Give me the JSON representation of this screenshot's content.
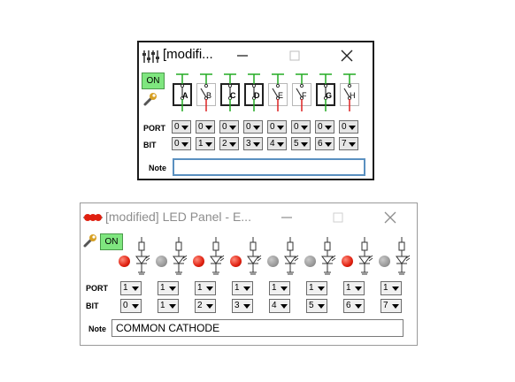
{
  "switch_window": {
    "title": "[modifi...",
    "on_label": "ON",
    "switches": [
      {
        "label": "A",
        "state": "closed"
      },
      {
        "label": "B",
        "state": "open"
      },
      {
        "label": "C",
        "state": "closed"
      },
      {
        "label": "D",
        "state": "closed"
      },
      {
        "label": "E",
        "state": "open"
      },
      {
        "label": "F",
        "state": "open"
      },
      {
        "label": "G",
        "state": "closed"
      },
      {
        "label": "H",
        "state": "open"
      }
    ],
    "port_label": "PORT",
    "bit_label": "BIT",
    "port_values": [
      "0",
      "0",
      "0",
      "0",
      "0",
      "0",
      "0",
      "0"
    ],
    "bit_values": [
      "0",
      "1",
      "2",
      "3",
      "4",
      "5",
      "6",
      "7"
    ],
    "note_label": "Note",
    "note_value": ""
  },
  "led_window": {
    "title": "[modified] LED Panel - E...",
    "on_label": "ON",
    "leds": [
      "on",
      "off",
      "on",
      "on",
      "off",
      "off",
      "on",
      "off"
    ],
    "port_label": "PORT",
    "bit_label": "BIT",
    "port_values": [
      "1",
      "1",
      "1",
      "1",
      "1",
      "1",
      "1",
      "1"
    ],
    "bit_values": [
      "0",
      "1",
      "2",
      "3",
      "4",
      "5",
      "6",
      "7"
    ],
    "note_label": "Note",
    "note_value": "COMMON CATHODE"
  },
  "colors": {
    "on_button": "#7fe67f",
    "led_on": "#e02010",
    "led_off": "#9a9a9a",
    "wire_green": "#22aa22",
    "wire_red": "#dd2222"
  }
}
